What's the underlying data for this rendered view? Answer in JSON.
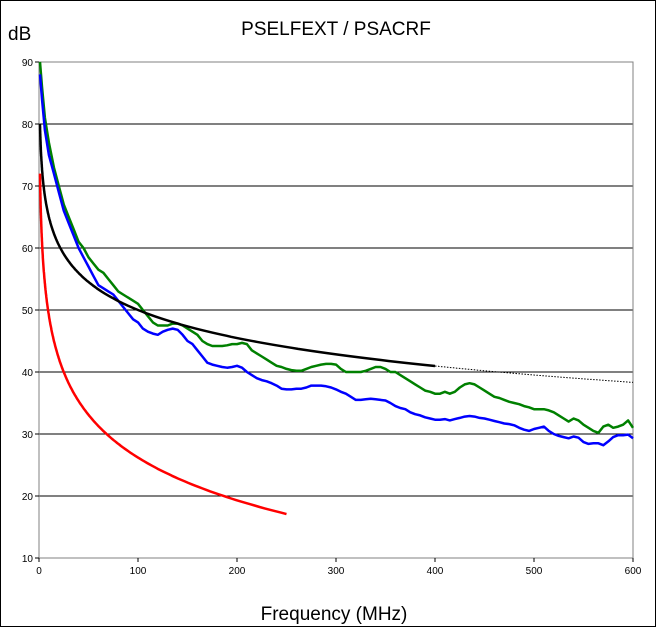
{
  "chart_data": {
    "type": "line",
    "title": "PSELFEXT / PSACRF",
    "ylabel": "dB",
    "xlabel": "Frequency (MHz)",
    "xlim": [
      0,
      600
    ],
    "ylim": [
      10,
      90
    ],
    "xticks": [
      0,
      100,
      200,
      300,
      400,
      500,
      600
    ],
    "yticks": [
      10,
      20,
      30,
      40,
      50,
      60,
      70,
      80,
      90
    ],
    "grid": "horizontal",
    "series": [
      {
        "color": "#008000",
        "style": "solid",
        "points": [
          [
            1,
            90
          ],
          [
            3,
            86
          ],
          [
            6,
            81
          ],
          [
            10,
            77
          ],
          [
            15,
            73
          ],
          [
            20,
            70
          ],
          [
            25,
            67
          ],
          [
            30,
            65
          ],
          [
            35,
            63
          ],
          [
            40,
            61
          ],
          [
            45,
            60
          ],
          [
            50,
            58.5
          ],
          [
            55,
            57.5
          ],
          [
            60,
            56.5
          ],
          [
            65,
            56
          ],
          [
            70,
            55
          ],
          [
            75,
            54
          ],
          [
            80,
            53
          ],
          [
            85,
            52.5
          ],
          [
            90,
            52
          ],
          [
            95,
            51.5
          ],
          [
            100,
            51
          ],
          [
            105,
            50
          ],
          [
            110,
            49
          ],
          [
            115,
            48
          ],
          [
            120,
            47.5
          ],
          [
            125,
            47.5
          ],
          [
            130,
            47.5
          ],
          [
            135,
            47.8
          ],
          [
            140,
            47.8
          ],
          [
            145,
            47.5
          ],
          [
            150,
            47
          ],
          [
            155,
            46.5
          ],
          [
            160,
            46
          ],
          [
            165,
            45
          ],
          [
            170,
            44.5
          ],
          [
            175,
            44.2
          ],
          [
            180,
            44.2
          ],
          [
            185,
            44.2
          ],
          [
            190,
            44.3
          ],
          [
            195,
            44.5
          ],
          [
            200,
            44.5
          ],
          [
            205,
            44.7
          ],
          [
            210,
            44.5
          ],
          [
            215,
            43.5
          ],
          [
            220,
            43
          ],
          [
            225,
            42.5
          ],
          [
            230,
            42
          ],
          [
            235,
            41.5
          ],
          [
            240,
            41
          ],
          [
            245,
            40.8
          ],
          [
            250,
            40.5
          ],
          [
            255,
            40.3
          ],
          [
            260,
            40.2
          ],
          [
            265,
            40.2
          ],
          [
            270,
            40.5
          ],
          [
            275,
            40.8
          ],
          [
            280,
            41
          ],
          [
            285,
            41.2
          ],
          [
            290,
            41.3
          ],
          [
            295,
            41.3
          ],
          [
            300,
            41.2
          ],
          [
            305,
            40.5
          ],
          [
            310,
            40
          ],
          [
            315,
            40
          ],
          [
            320,
            40
          ],
          [
            325,
            40
          ],
          [
            330,
            40.2
          ],
          [
            335,
            40.5
          ],
          [
            340,
            40.8
          ],
          [
            345,
            40.8
          ],
          [
            350,
            40.5
          ],
          [
            355,
            40
          ],
          [
            360,
            40
          ],
          [
            365,
            39.5
          ],
          [
            370,
            39
          ],
          [
            375,
            38.5
          ],
          [
            380,
            38
          ],
          [
            385,
            37.5
          ],
          [
            390,
            37
          ],
          [
            395,
            36.8
          ],
          [
            400,
            36.5
          ],
          [
            405,
            36.5
          ],
          [
            410,
            36.8
          ],
          [
            415,
            36.5
          ],
          [
            420,
            36.8
          ],
          [
            425,
            37.5
          ],
          [
            430,
            38
          ],
          [
            435,
            38.2
          ],
          [
            440,
            38
          ],
          [
            445,
            37.5
          ],
          [
            450,
            37
          ],
          [
            455,
            36.5
          ],
          [
            460,
            36
          ],
          [
            465,
            35.8
          ],
          [
            470,
            35.5
          ],
          [
            475,
            35.2
          ],
          [
            480,
            35
          ],
          [
            485,
            34.8
          ],
          [
            490,
            34.5
          ],
          [
            495,
            34.3
          ],
          [
            500,
            34
          ],
          [
            505,
            34
          ],
          [
            510,
            34
          ],
          [
            515,
            33.8
          ],
          [
            520,
            33.5
          ],
          [
            525,
            33
          ],
          [
            530,
            32.5
          ],
          [
            535,
            32
          ],
          [
            540,
            32.5
          ],
          [
            545,
            32.2
          ],
          [
            550,
            31.5
          ],
          [
            555,
            31
          ],
          [
            560,
            30.5
          ],
          [
            565,
            30.2
          ],
          [
            570,
            31.2
          ],
          [
            575,
            31.5
          ],
          [
            580,
            31
          ],
          [
            585,
            31.2
          ],
          [
            590,
            31.5
          ],
          [
            595,
            32.2
          ],
          [
            600,
            31
          ]
        ]
      },
      {
        "color": "#0000ff",
        "style": "solid",
        "points": [
          [
            1,
            88
          ],
          [
            3,
            84
          ],
          [
            6,
            79
          ],
          [
            10,
            75
          ],
          [
            15,
            72
          ],
          [
            20,
            69
          ],
          [
            25,
            66
          ],
          [
            30,
            64
          ],
          [
            35,
            62
          ],
          [
            40,
            60
          ],
          [
            45,
            58.5
          ],
          [
            50,
            57
          ],
          [
            55,
            55.5
          ],
          [
            60,
            54
          ],
          [
            65,
            53.5
          ],
          [
            70,
            53
          ],
          [
            75,
            52.5
          ],
          [
            80,
            51.5
          ],
          [
            85,
            50.5
          ],
          [
            90,
            49.5
          ],
          [
            95,
            48.5
          ],
          [
            100,
            48
          ],
          [
            105,
            47
          ],
          [
            110,
            46.5
          ],
          [
            115,
            46.2
          ],
          [
            120,
            46
          ],
          [
            125,
            46.5
          ],
          [
            130,
            46.8
          ],
          [
            135,
            47
          ],
          [
            140,
            46.8
          ],
          [
            145,
            46
          ],
          [
            150,
            45
          ],
          [
            155,
            44.5
          ],
          [
            160,
            43.5
          ],
          [
            165,
            42.5
          ],
          [
            170,
            41.5
          ],
          [
            175,
            41.2
          ],
          [
            180,
            41
          ],
          [
            185,
            40.8
          ],
          [
            190,
            40.7
          ],
          [
            195,
            40.8
          ],
          [
            200,
            41
          ],
          [
            205,
            40.7
          ],
          [
            210,
            40
          ],
          [
            215,
            39.5
          ],
          [
            220,
            39
          ],
          [
            225,
            38.7
          ],
          [
            230,
            38.5
          ],
          [
            235,
            38.2
          ],
          [
            240,
            37.8
          ],
          [
            245,
            37.3
          ],
          [
            250,
            37.2
          ],
          [
            255,
            37.2
          ],
          [
            260,
            37.3
          ],
          [
            265,
            37.3
          ],
          [
            270,
            37.5
          ],
          [
            275,
            37.8
          ],
          [
            280,
            37.8
          ],
          [
            285,
            37.8
          ],
          [
            290,
            37.7
          ],
          [
            295,
            37.5
          ],
          [
            300,
            37.2
          ],
          [
            305,
            36.8
          ],
          [
            310,
            36.5
          ],
          [
            315,
            36
          ],
          [
            320,
            35.5
          ],
          [
            325,
            35.5
          ],
          [
            330,
            35.6
          ],
          [
            335,
            35.7
          ],
          [
            340,
            35.6
          ],
          [
            345,
            35.5
          ],
          [
            350,
            35.4
          ],
          [
            355,
            35
          ],
          [
            360,
            34.5
          ],
          [
            365,
            34.2
          ],
          [
            370,
            34
          ],
          [
            375,
            33.5
          ],
          [
            380,
            33.2
          ],
          [
            385,
            33
          ],
          [
            390,
            32.7
          ],
          [
            395,
            32.5
          ],
          [
            400,
            32.3
          ],
          [
            405,
            32.3
          ],
          [
            410,
            32.4
          ],
          [
            415,
            32.2
          ],
          [
            420,
            32.4
          ],
          [
            425,
            32.6
          ],
          [
            430,
            32.8
          ],
          [
            435,
            32.9
          ],
          [
            440,
            32.8
          ],
          [
            445,
            32.6
          ],
          [
            450,
            32.5
          ],
          [
            455,
            32.3
          ],
          [
            460,
            32.1
          ],
          [
            465,
            31.9
          ],
          [
            470,
            31.7
          ],
          [
            475,
            31.6
          ],
          [
            480,
            31.4
          ],
          [
            485,
            31
          ],
          [
            490,
            30.7
          ],
          [
            495,
            30.5
          ],
          [
            500,
            30.8
          ],
          [
            505,
            31
          ],
          [
            510,
            31.2
          ],
          [
            515,
            30.5
          ],
          [
            520,
            30
          ],
          [
            525,
            29.7
          ],
          [
            530,
            29.5
          ],
          [
            535,
            29.3
          ],
          [
            540,
            29.6
          ],
          [
            545,
            29.4
          ],
          [
            550,
            28.7
          ],
          [
            555,
            28.4
          ],
          [
            560,
            28.5
          ],
          [
            565,
            28.5
          ],
          [
            570,
            28.2
          ],
          [
            575,
            28.8
          ],
          [
            580,
            29.5
          ],
          [
            585,
            29.8
          ],
          [
            590,
            29.8
          ],
          [
            595,
            29.9
          ],
          [
            600,
            29.3
          ]
        ]
      },
      {
        "color": "#000000",
        "style": "solid",
        "formula": "log",
        "params": {
          "base": 80,
          "factor": 15
        },
        "x_range": [
          1,
          400
        ]
      },
      {
        "color": "#000000",
        "style": "dotted",
        "formula": "log",
        "params": {
          "base": 80,
          "factor": 15
        },
        "x_range": [
          400,
          600
        ]
      },
      {
        "color": "#ff0000",
        "style": "solid",
        "formula": "log",
        "params": {
          "base": 72,
          "factor": 22.9
        },
        "x_range": [
          1,
          250
        ]
      }
    ]
  }
}
